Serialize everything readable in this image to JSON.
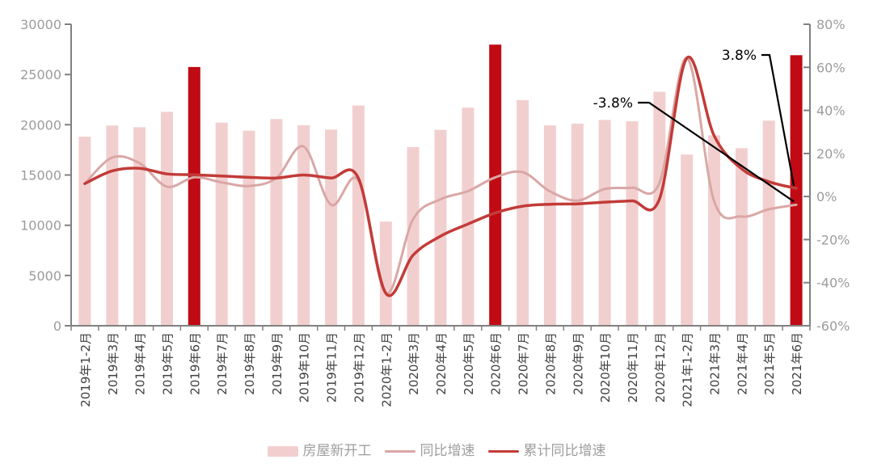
{
  "chart_data": {
    "type": "combo",
    "title": "",
    "categories": [
      "2019年1-2月",
      "2019年3月",
      "2019年4月",
      "2019年5月",
      "2019年6月",
      "2019年7月",
      "2019年8月",
      "2019年9月",
      "2019年10月",
      "2019年11月",
      "2019年12月",
      "2020年1-2月",
      "2020年3月",
      "2020年4月",
      "2020年5月",
      "2020年6月",
      "2020年7月",
      "2020年8月",
      "2020年9月",
      "2020年10月",
      "2020年11月",
      "2020年12月",
      "2021年1-2月",
      "2021年3月",
      "2021年4月",
      "2021年5月",
      "2021年6月"
    ],
    "series": [
      {
        "name": "房屋新开工",
        "type": "bar",
        "axis": "left",
        "color": "#F2CFCF",
        "highlight_color": "#C00A14",
        "highlight_indexes": [
          4,
          15,
          26
        ],
        "values": [
          18814,
          19924,
          19756,
          21290,
          25749,
          20208,
          19410,
          20567,
          19945,
          19523,
          21916,
          10370,
          17771,
          19493,
          21699,
          27970,
          22459,
          19932,
          20117,
          20481,
          20360,
          23283,
          17037,
          18946,
          17673,
          20411,
          26920
        ]
      },
      {
        "name": "同比增速",
        "type": "line",
        "axis": "right",
        "color": "#D9A7A5",
        "values": [
          6.0,
          18.1,
          15.5,
          4.6,
          8.9,
          6.6,
          4.9,
          8.6,
          23.2,
          -3.8,
          7.4,
          -44.9,
          -10.5,
          -1.3,
          2.5,
          8.9,
          11.3,
          2.4,
          -1.9,
          3.5,
          4.1,
          6.3,
          64.3,
          -2.2,
          -9.3,
          -5.9,
          -3.8
        ]
      },
      {
        "name": "累计同比增速",
        "type": "line",
        "axis": "right",
        "color": "#C23B38",
        "values": [
          6.0,
          11.9,
          13.1,
          10.5,
          10.1,
          9.5,
          8.9,
          8.6,
          10.0,
          8.6,
          8.5,
          -44.9,
          -27.2,
          -18.4,
          -12.8,
          -7.6,
          -4.5,
          -3.6,
          -3.4,
          -2.6,
          -2.0,
          -1.2,
          64.3,
          28.2,
          12.9,
          6.9,
          3.8
        ]
      }
    ],
    "left_axis": {
      "min": 0,
      "max": 30000,
      "tick_values": [
        0,
        5000,
        10000,
        15000,
        20000,
        25000,
        30000
      ],
      "tick_labels": [
        "0",
        "5000",
        "10000",
        "15000",
        "20000",
        "25000",
        "30000"
      ]
    },
    "right_axis": {
      "min": -60,
      "max": 80,
      "tick_values": [
        -60,
        -40,
        -20,
        0,
        20,
        40,
        60,
        80
      ],
      "tick_labels": [
        "-60%",
        "-40%",
        "-20%",
        "0%",
        "20%",
        "40%",
        "60%",
        "80%"
      ]
    },
    "annotations": [
      {
        "text": "-3.8%",
        "series": "同比增速",
        "points_to_value": -3.8
      },
      {
        "text": "3.8%",
        "series": "累计同比增速",
        "points_to_value": 3.8
      }
    ],
    "legend": [
      {
        "label": "房屋新开工",
        "swatch": "bar"
      },
      {
        "label": "同比增速",
        "swatch": "line"
      },
      {
        "label": "累计同比增速",
        "swatch": "line"
      }
    ],
    "grid": false,
    "legend_position": "bottom",
    "colors": {
      "axis": "#808080",
      "y_tick_label": "#9c9c9c",
      "x_tick_label": "#404040",
      "annotation": "#000000"
    }
  }
}
